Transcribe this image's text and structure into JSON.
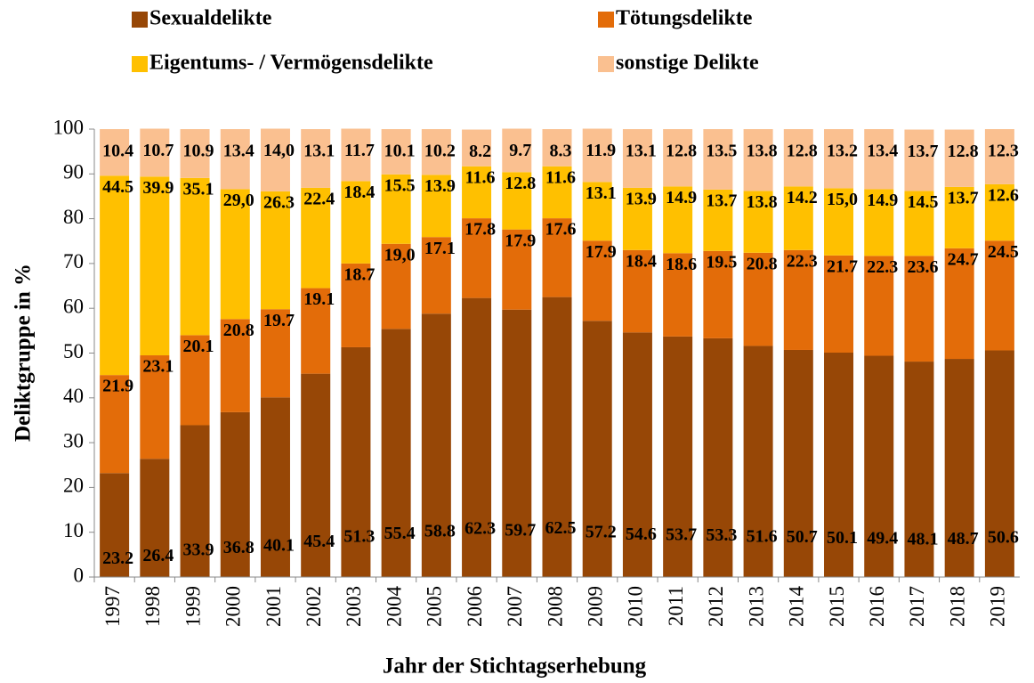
{
  "chart_data": {
    "type": "stacked_bar",
    "x_label": "Jahr der Stichtagserhebung",
    "y_label": "Deliktgruppe in %",
    "categories": [
      "1997",
      "1998",
      "1999",
      "2000",
      "2001",
      "2002",
      "2003",
      "2004",
      "2005",
      "2006",
      "2007",
      "2008",
      "2009",
      "2010",
      "2011",
      "2012",
      "2013",
      "2014",
      "2015",
      "2016",
      "2017",
      "2018",
      "2019"
    ],
    "series": [
      {
        "name": "Sexualdelikte",
        "color": "#974706",
        "values": [
          23.2,
          26.4,
          33.9,
          36.8,
          40.1,
          45.4,
          51.3,
          55.4,
          58.8,
          62.3,
          59.7,
          62.5,
          57.2,
          54.6,
          53.7,
          53.3,
          51.6,
          50.7,
          50.1,
          49.4,
          48.1,
          48.7,
          50.6
        ],
        "value_labels": [
          "23.2",
          "26.4",
          "33.9",
          "36.8",
          "40.1",
          "45.4",
          "51.3",
          "55.4",
          "58.8",
          "62.3",
          "59.7",
          "62.5",
          "57.2",
          "54.6",
          "53.7",
          "53.3",
          "51.6",
          "50.7",
          "50.1",
          "49.4",
          "48.1",
          "48.7",
          "50.6"
        ]
      },
      {
        "name": "Tötungsdelikte",
        "color": "#e36c09",
        "values": [
          21.9,
          23.1,
          20.1,
          20.8,
          19.7,
          19.1,
          18.7,
          19.0,
          17.1,
          17.8,
          17.9,
          17.6,
          17.9,
          18.4,
          18.6,
          19.5,
          20.8,
          22.3,
          21.7,
          22.3,
          23.6,
          24.7,
          24.5
        ],
        "value_labels": [
          "21.9",
          "23.1",
          "20.1",
          "20.8",
          "19.7",
          "19.1",
          "18.7",
          "19,0",
          "17.1",
          "17.8",
          "17.9",
          "17.6",
          "17.9",
          "18.4",
          "18.6",
          "19.5",
          "20.8",
          "22.3",
          "21.7",
          "22.3",
          "23.6",
          "24.7",
          "24.5"
        ]
      },
      {
        "name": "Eigentums- / Vermögensdelikte",
        "color": "#ffc000",
        "values": [
          44.5,
          39.9,
          35.1,
          29.0,
          26.3,
          22.4,
          18.4,
          15.5,
          13.9,
          11.6,
          12.8,
          11.6,
          13.1,
          13.9,
          14.9,
          13.7,
          13.8,
          14.2,
          15.0,
          14.9,
          14.5,
          13.7,
          12.6
        ],
        "value_labels": [
          "44.5",
          "39.9",
          "35.1",
          "29,0",
          "26.3",
          "22.4",
          "18.4",
          "15.5",
          "13.9",
          "11.6",
          "12.8",
          "11.6",
          "13.1",
          "13.9",
          "14.9",
          "13.7",
          "13.8",
          "14.2",
          "15,0",
          "14.9",
          "14.5",
          "13.7",
          "12.6"
        ]
      },
      {
        "name": "sonstige Delikte",
        "color": "#fac090",
        "values": [
          10.4,
          10.7,
          10.9,
          13.4,
          14.0,
          13.1,
          11.7,
          10.1,
          10.2,
          8.2,
          9.7,
          8.3,
          11.9,
          13.1,
          12.8,
          13.5,
          13.8,
          12.8,
          13.2,
          13.4,
          13.7,
          12.8,
          12.3
        ],
        "value_labels": [
          "10.4",
          "10.7",
          "10.9",
          "13.4",
          "14,0",
          "13.1",
          "11.7",
          "10.1",
          "10.2",
          "8.2",
          "9.7",
          "8.3",
          "11.9",
          "13.1",
          "12.8",
          "13.5",
          "13.8",
          "12.8",
          "13.2",
          "13.4",
          "13.7",
          "12.8",
          "12.3"
        ]
      }
    ],
    "ylim": [
      0,
      100
    ],
    "yticks": [
      0,
      10,
      20,
      30,
      40,
      50,
      60,
      70,
      80,
      90,
      100
    ],
    "grid": false
  }
}
